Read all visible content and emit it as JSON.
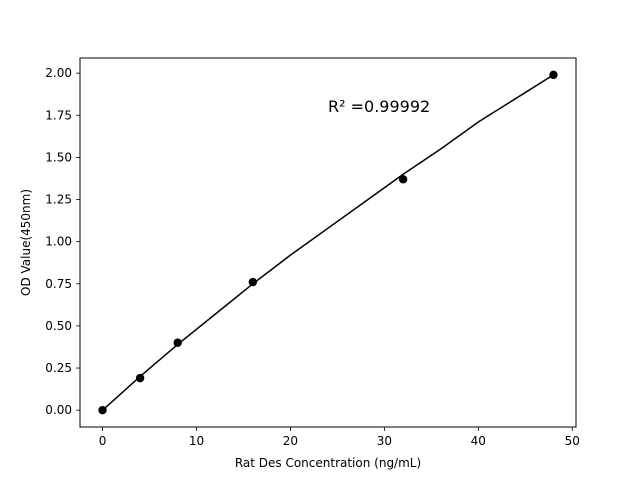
{
  "chart_data": {
    "type": "scatter",
    "title": "",
    "xlabel": "Rat Des Concentration (ng/mL)",
    "ylabel": "OD Value(450nm)",
    "xlim": [
      -2.4,
      50.4
    ],
    "ylim": [
      -0.1,
      2.09
    ],
    "x_ticks": [
      "0",
      "10",
      "20",
      "30",
      "40",
      "50"
    ],
    "y_ticks": [
      "0.00",
      "0.25",
      "0.50",
      "0.75",
      "1.00",
      "1.25",
      "1.50",
      "1.75",
      "2.00"
    ],
    "grid": false,
    "points": [
      {
        "x": 0,
        "y": 0.0
      },
      {
        "x": 4,
        "y": 0.19
      },
      {
        "x": 8,
        "y": 0.4
      },
      {
        "x": 16,
        "y": 0.76
      },
      {
        "x": 32,
        "y": 1.37
      },
      {
        "x": 48,
        "y": 1.99
      }
    ],
    "fit_curve": {
      "x": [
        0,
        4,
        8,
        12,
        16,
        20,
        24,
        28,
        32,
        36,
        40,
        44,
        48
      ],
      "y": [
        0.0,
        0.2,
        0.39,
        0.57,
        0.75,
        0.92,
        1.08,
        1.24,
        1.4,
        1.55,
        1.71,
        1.85,
        1.99
      ]
    },
    "annotation": "R² =0.99992",
    "annotation_pos": {
      "x": 24,
      "y": 1.8
    },
    "colors": {
      "points": "#000000",
      "line": "#000000",
      "axes": "#000000"
    }
  }
}
